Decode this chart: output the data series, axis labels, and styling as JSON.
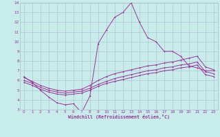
{
  "xlabel": "Windchill (Refroidissement éolien,°C)",
  "ylabel": "",
  "background_color": "#c8ecea",
  "grid_color": "#aabbcc",
  "line_color": "#993399",
  "xlim": [
    -0.5,
    23.5
  ],
  "ylim": [
    3,
    14
  ],
  "yticks": [
    3,
    4,
    5,
    6,
    7,
    8,
    9,
    10,
    11,
    12,
    13,
    14
  ],
  "xticks": [
    0,
    1,
    2,
    3,
    4,
    5,
    6,
    7,
    8,
    9,
    10,
    11,
    12,
    13,
    14,
    15,
    16,
    17,
    18,
    19,
    20,
    21,
    22,
    23
  ],
  "series1_x": [
    0,
    1,
    2,
    3,
    4,
    5,
    6,
    7,
    8,
    9,
    10,
    11,
    12,
    13,
    14,
    15,
    16,
    17,
    18,
    19,
    20,
    21,
    22,
    23
  ],
  "series1_y": [
    6.4,
    5.8,
    5.0,
    4.3,
    3.7,
    3.5,
    3.6,
    2.7,
    4.4,
    9.8,
    11.2,
    12.5,
    13.0,
    14.0,
    12.0,
    10.4,
    10.0,
    9.0,
    9.0,
    8.5,
    7.5,
    7.3,
    7.0,
    7.0
  ],
  "series2_x": [
    0,
    1,
    2,
    3,
    4,
    5,
    6,
    7,
    8,
    9,
    10,
    11,
    12,
    13,
    14,
    15,
    16,
    17,
    18,
    19,
    20,
    21,
    22,
    23
  ],
  "series2_y": [
    6.3,
    5.9,
    5.5,
    5.2,
    5.0,
    4.9,
    5.0,
    5.1,
    5.5,
    6.0,
    6.4,
    6.7,
    6.9,
    7.1,
    7.3,
    7.5,
    7.6,
    7.8,
    7.9,
    8.1,
    8.3,
    8.5,
    7.4,
    7.1
  ],
  "series3_x": [
    0,
    1,
    2,
    3,
    4,
    5,
    6,
    7,
    8,
    9,
    10,
    11,
    12,
    13,
    14,
    15,
    16,
    17,
    18,
    19,
    20,
    21,
    22,
    23
  ],
  "series3_y": [
    6.0,
    5.7,
    5.3,
    5.0,
    4.8,
    4.7,
    4.8,
    4.9,
    5.2,
    5.6,
    5.9,
    6.2,
    6.4,
    6.6,
    6.8,
    7.0,
    7.1,
    7.3,
    7.4,
    7.6,
    7.7,
    7.9,
    6.9,
    6.7
  ],
  "series4_x": [
    0,
    1,
    2,
    3,
    4,
    5,
    6,
    7,
    8,
    9,
    10,
    11,
    12,
    13,
    14,
    15,
    16,
    17,
    18,
    19,
    20,
    21,
    22,
    23
  ],
  "series4_y": [
    5.8,
    5.5,
    5.1,
    4.8,
    4.6,
    4.5,
    4.6,
    4.7,
    5.0,
    5.4,
    5.7,
    5.9,
    6.1,
    6.3,
    6.5,
    6.7,
    6.8,
    7.0,
    7.1,
    7.3,
    7.4,
    7.6,
    6.6,
    6.4
  ]
}
